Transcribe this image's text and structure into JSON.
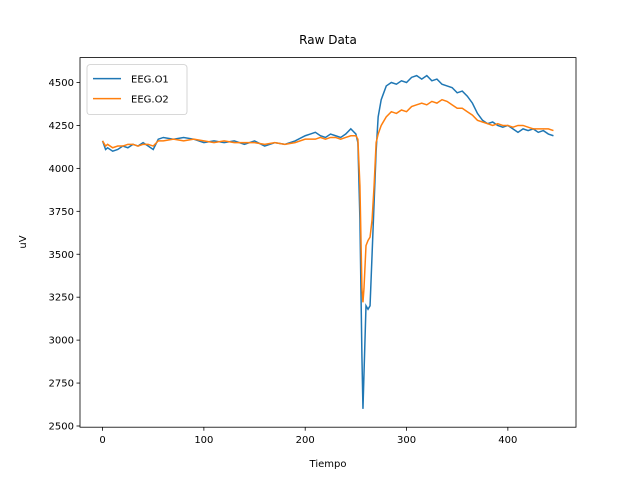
{
  "chart_data": {
    "type": "line",
    "title": "Raw Data",
    "x_label": "Tiempo",
    "y_label": "uV",
    "x": [
      0,
      3,
      5,
      10,
      15,
      20,
      25,
      30,
      35,
      40,
      45,
      50,
      55,
      60,
      70,
      80,
      90,
      100,
      110,
      120,
      130,
      140,
      150,
      160,
      170,
      180,
      190,
      200,
      205,
      210,
      215,
      220,
      225,
      230,
      235,
      240,
      245,
      250,
      252,
      254,
      256,
      257,
      258,
      260,
      262,
      264,
      266,
      268,
      270,
      272,
      275,
      280,
      285,
      290,
      295,
      300,
      305,
      310,
      315,
      320,
      325,
      330,
      335,
      340,
      345,
      350,
      355,
      360,
      365,
      370,
      375,
      380,
      385,
      390,
      395,
      400,
      405,
      410,
      415,
      420,
      425,
      430,
      435,
      440,
      445
    ],
    "series": [
      {
        "name": "EEG.O1",
        "color": "#1f77b4",
        "values": [
          4160,
          4110,
          4120,
          4100,
          4110,
          4130,
          4120,
          4140,
          4130,
          4150,
          4130,
          4110,
          4170,
          4180,
          4170,
          4180,
          4170,
          4150,
          4160,
          4150,
          4160,
          4140,
          4160,
          4130,
          4150,
          4140,
          4160,
          4190,
          4200,
          4210,
          4190,
          4180,
          4200,
          4190,
          4180,
          4200,
          4230,
          4200,
          4150,
          3700,
          2900,
          2600,
          2800,
          3200,
          3180,
          3200,
          3500,
          3800,
          4100,
          4300,
          4400,
          4480,
          4500,
          4490,
          4510,
          4500,
          4530,
          4540,
          4520,
          4540,
          4510,
          4520,
          4490,
          4480,
          4470,
          4440,
          4450,
          4420,
          4380,
          4320,
          4280,
          4260,
          4270,
          4250,
          4240,
          4250,
          4230,
          4210,
          4230,
          4220,
          4230,
          4210,
          4220,
          4200,
          4190
        ]
      },
      {
        "name": "EEG.O2",
        "color": "#ff7f0e",
        "values": [
          4160,
          4130,
          4140,
          4120,
          4130,
          4130,
          4140,
          4140,
          4130,
          4140,
          4140,
          4130,
          4160,
          4160,
          4170,
          4160,
          4170,
          4160,
          4150,
          4160,
          4150,
          4150,
          4150,
          4140,
          4150,
          4140,
          4150,
          4170,
          4170,
          4170,
          4180,
          4170,
          4180,
          4180,
          4170,
          4180,
          4190,
          4190,
          4170,
          3900,
          3300,
          3220,
          3300,
          3550,
          3580,
          3600,
          3700,
          3900,
          4150,
          4200,
          4250,
          4300,
          4330,
          4320,
          4340,
          4330,
          4360,
          4370,
          4380,
          4370,
          4390,
          4380,
          4400,
          4390,
          4370,
          4350,
          4350,
          4330,
          4310,
          4280,
          4270,
          4260,
          4250,
          4260,
          4250,
          4250,
          4240,
          4250,
          4250,
          4240,
          4230,
          4230,
          4230,
          4230,
          4220
        ]
      }
    ],
    "xlim": [
      -22.25,
      467.25
    ],
    "ylim": [
      2493,
      4645
    ],
    "xticks": [
      0,
      100,
      200,
      300,
      400
    ],
    "yticks": [
      2500,
      2750,
      3000,
      3250,
      3500,
      3750,
      4000,
      4250,
      4500
    ],
    "grid": false,
    "legend": "upper-left"
  }
}
